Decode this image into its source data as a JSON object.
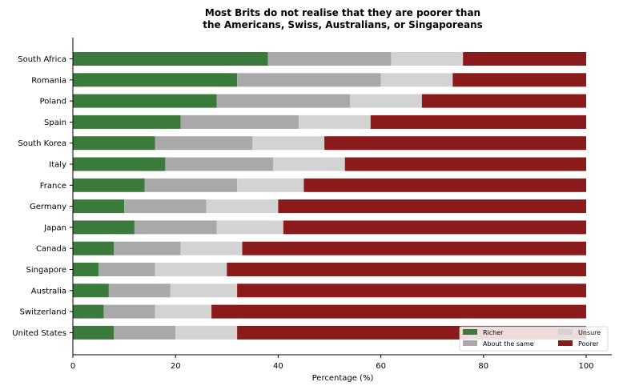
{
  "chart_data": {
    "type": "bar",
    "orientation": "horizontal",
    "stacked": true,
    "title_lines": [
      "Most Brits do not realise that they are poorer than",
      "the Americans, Swiss, Australians, or Singaporeans"
    ],
    "xlabel": "Percentage (%)",
    "ylabel": "",
    "xlim": [
      0,
      100
    ],
    "xticks": [
      0,
      20,
      40,
      60,
      80,
      100
    ],
    "grid": false,
    "legend_position": "bottom-right",
    "categories": [
      "South Africa",
      "Romania",
      "Poland",
      "Spain",
      "South Korea",
      "Italy",
      "France",
      "Germany",
      "Japan",
      "Canada",
      "Singapore",
      "Australia",
      "Switzerland",
      "United States"
    ],
    "series": [
      {
        "name": "Richer",
        "color": "#3a7a3a",
        "values": [
          38,
          32,
          28,
          21,
          16,
          18,
          14,
          10,
          12,
          8,
          5,
          7,
          6,
          8
        ]
      },
      {
        "name": "About the same",
        "color": "#a9a9a9",
        "values": [
          24,
          28,
          26,
          23,
          19,
          21,
          18,
          16,
          16,
          13,
          11,
          12,
          10,
          12
        ]
      },
      {
        "name": "Unsure",
        "color": "#d3d3d3",
        "values": [
          14,
          14,
          14,
          14,
          14,
          14,
          13,
          14,
          13,
          12,
          14,
          13,
          11,
          12
        ]
      },
      {
        "name": "Poorer",
        "color": "#8b1a1a",
        "values": [
          24,
          26,
          32,
          42,
          51,
          47,
          55,
          60,
          59,
          67,
          70,
          68,
          73,
          68
        ]
      }
    ]
  }
}
